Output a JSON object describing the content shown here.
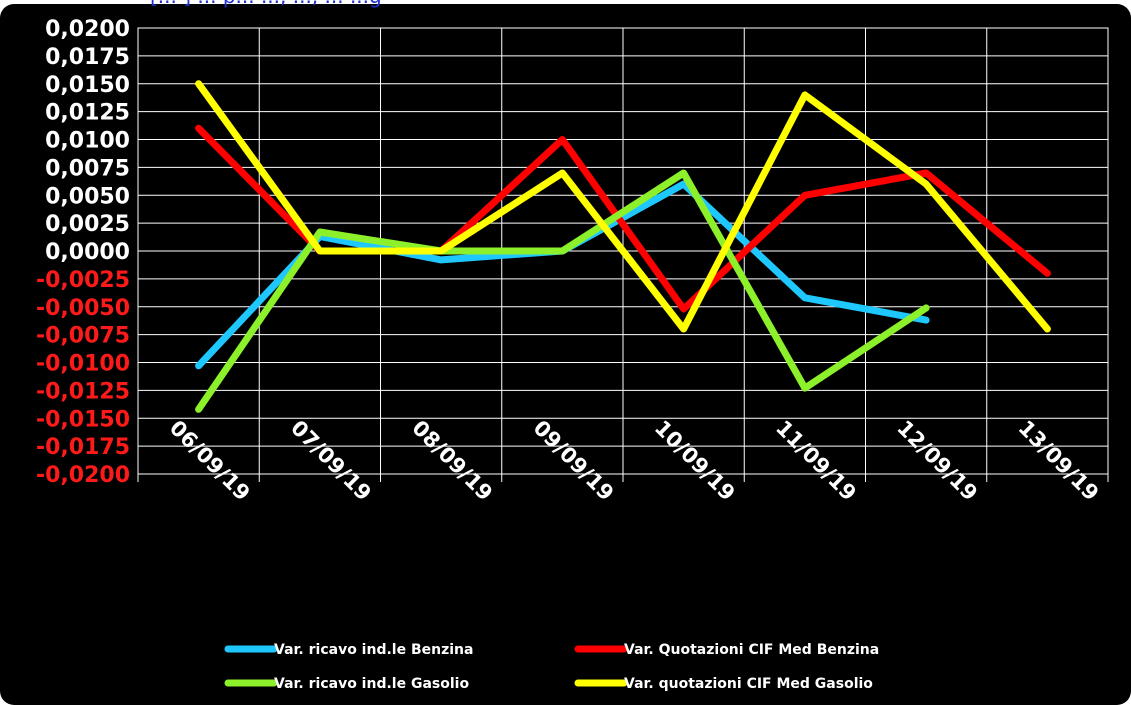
{
  "chart_data": {
    "type": "line",
    "title": "[... ] ... p... ..., ..., ... ...g",
    "categories": [
      "06/09/19",
      "07/09/19",
      "08/09/19",
      "09/09/19",
      "10/09/19",
      "11/09/19",
      "12/09/19",
      "13/09/19"
    ],
    "ylim": [
      -0.02,
      0.02
    ],
    "yticks": [
      {
        "value": 0.02,
        "label": "0,0200"
      },
      {
        "value": 0.0175,
        "label": "0,0175"
      },
      {
        "value": 0.015,
        "label": "0,0150"
      },
      {
        "value": 0.0125,
        "label": "0,0125"
      },
      {
        "value": 0.01,
        "label": "0,0100"
      },
      {
        "value": 0.0075,
        "label": "0,0075"
      },
      {
        "value": 0.005,
        "label": "0,0050"
      },
      {
        "value": 0.0025,
        "label": "0,0025"
      },
      {
        "value": 0.0,
        "label": "0,0000"
      },
      {
        "value": -0.0025,
        "label": "-0,0025"
      },
      {
        "value": -0.005,
        "label": "-0,0050"
      },
      {
        "value": -0.0075,
        "label": "-0,0075"
      },
      {
        "value": -0.01,
        "label": "-0,0100"
      },
      {
        "value": -0.0125,
        "label": "-0,0125"
      },
      {
        "value": -0.015,
        "label": "-0,0150"
      },
      {
        "value": -0.0175,
        "label": "-0,0175"
      },
      {
        "value": -0.02,
        "label": "-0,0200"
      }
    ],
    "grid": true,
    "legend_position": "bottom",
    "positive_tick_color": "#ffffff",
    "negative_tick_color": "#ff1a1a",
    "series": [
      {
        "name": "Var. ricavo ind.le Benzina",
        "color": "#1ec8ff",
        "values": [
          -0.0103,
          0.0013,
          -0.0008,
          0.0,
          0.006,
          -0.0042,
          -0.0062,
          null
        ]
      },
      {
        "name": "Var. Quotazioni CIF Med Benzina",
        "color": "#ff0000",
        "values": [
          0.011,
          0.0,
          0.0,
          0.01,
          -0.0052,
          0.005,
          0.007,
          -0.002
        ]
      },
      {
        "name": "Var. ricavo ind.le Gasolio",
        "color": "#8cf02a",
        "values": [
          -0.0142,
          0.0017,
          0.0,
          0.0,
          0.007,
          -0.0123,
          -0.0051,
          null
        ]
      },
      {
        "name": "Var. quotazioni CIF Med Gasolio",
        "color": "#ffff00",
        "values": [
          0.015,
          0.0,
          0.0,
          0.007,
          -0.007,
          0.014,
          0.006,
          -0.007
        ]
      }
    ]
  }
}
